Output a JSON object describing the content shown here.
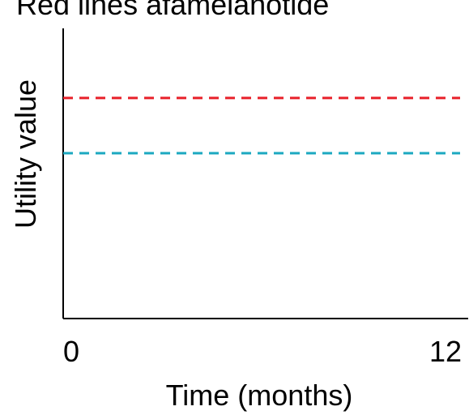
{
  "chart_data": {
    "type": "line",
    "title": "Red lines afamelanotide",
    "x_label": "Time (months)",
    "y_label": "Utility value",
    "xlim": [
      0,
      12
    ],
    "xticks": [
      0,
      12
    ],
    "ylim": [
      0,
      1
    ],
    "x": [
      0,
      12
    ],
    "series": [
      {
        "color": "#e8202a",
        "values": [
          0.76,
          0.76
        ]
      },
      {
        "color": "#1ca8c0",
        "values": [
          0.57,
          0.57
        ]
      }
    ]
  }
}
